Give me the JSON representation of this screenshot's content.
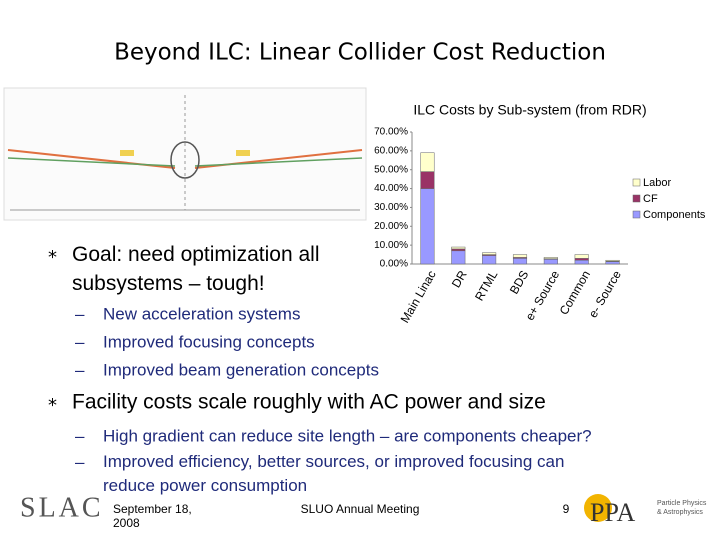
{
  "slide": {
    "title": "Beyond ILC: Linear Collider Cost Reduction",
    "bullets": [
      {
        "text": "Goal: need optimization all subsystems – tough!",
        "subs": [
          "New acceleration systems",
          "Improved focusing concepts",
          "Improved beam generation concepts"
        ]
      },
      {
        "text": "Facility costs scale roughly with AC power and size",
        "subs": [
          "High gradient can reduce site length – are components cheaper?",
          "Improved efficiency, better sources, or improved focusing can reduce power consumption"
        ]
      }
    ]
  },
  "chart_data": {
    "type": "stacked-bar",
    "title": "ILC Costs by Sub-system (from RDR)",
    "categories": [
      "Main Linac",
      "DR",
      "RTML",
      "BDS",
      "e+ Source",
      "Common",
      "e- Source"
    ],
    "series": [
      {
        "name": "Components",
        "color": "#9999ff",
        "values": [
          40,
          7,
          4.5,
          3,
          2.5,
          2,
          1.2
        ]
      },
      {
        "name": "CF",
        "color": "#993366",
        "values": [
          9,
          1,
          0.5,
          0.5,
          0.3,
          1,
          0.3
        ]
      },
      {
        "name": "Labor",
        "color": "#ffffcc",
        "values": [
          10,
          1,
          1,
          1.5,
          0.7,
          2,
          0.5
        ]
      }
    ],
    "ylim": [
      0,
      70
    ],
    "yticks": [
      {
        "value": 0,
        "label": "0.00%"
      },
      {
        "value": 10,
        "label": "10.00%"
      },
      {
        "value": 20,
        "label": "20.00%"
      },
      {
        "value": 30,
        "label": "30.00%"
      },
      {
        "value": 40,
        "label": "40.00%"
      },
      {
        "value": 50,
        "label": "50.00%"
      },
      {
        "value": 60,
        "label": "60.00%"
      },
      {
        "value": 70,
        "label": "70.00%"
      }
    ]
  },
  "footer": {
    "logo": "SLAC",
    "date_lines": [
      "September 18,",
      "2008"
    ],
    "event": "SLUO Annual Meeting",
    "page": "9",
    "ppa_logo": "PPA",
    "ppa_lines": [
      "Particle Physics",
      "& Astrophysics"
    ]
  }
}
